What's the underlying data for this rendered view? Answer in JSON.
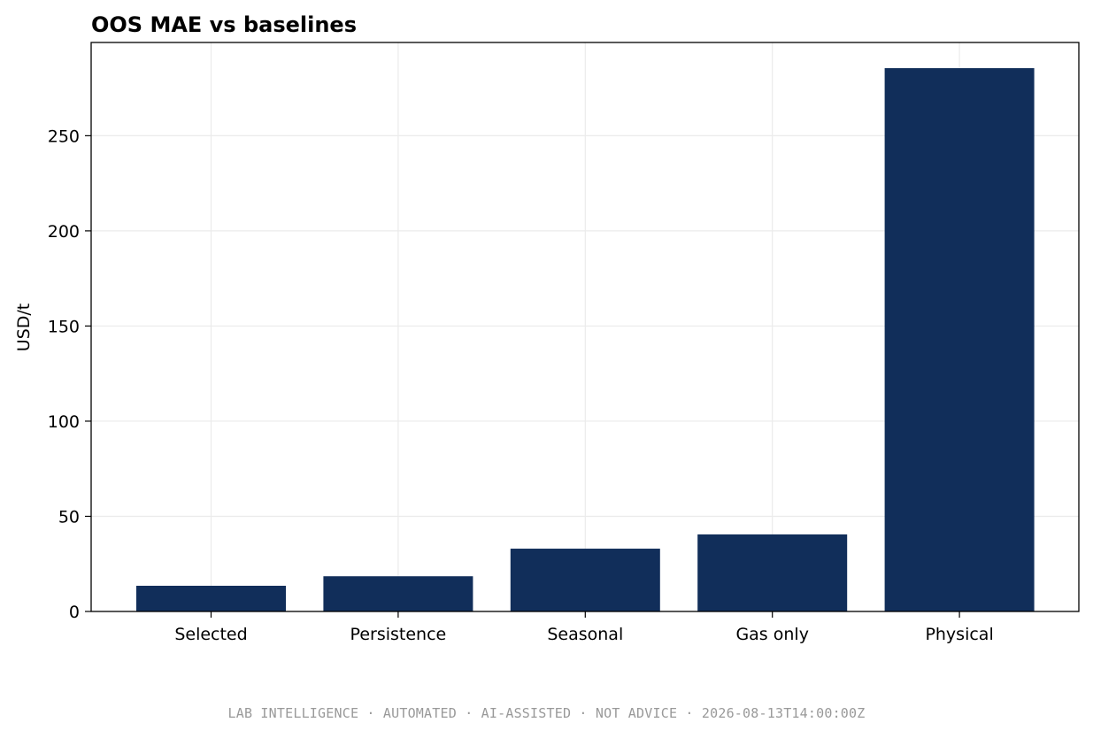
{
  "chart_data": {
    "type": "bar",
    "title": "OOS MAE vs baselines",
    "xlabel": "",
    "ylabel": "USD/t",
    "categories": [
      "Selected",
      "Persistence",
      "Seasonal",
      "Gas only",
      "Physical"
    ],
    "values": [
      13.5,
      18.5,
      33,
      40.5,
      285.5
    ],
    "ylim": [
      0,
      299
    ],
    "yticks": [
      0,
      50,
      100,
      150,
      200,
      250
    ],
    "grid": true,
    "bar_color": "#112e5a"
  },
  "footer": "LAB INTELLIGENCE · AUTOMATED · AI-ASSISTED · NOT ADVICE · 2026-08-13T14:00:00Z"
}
